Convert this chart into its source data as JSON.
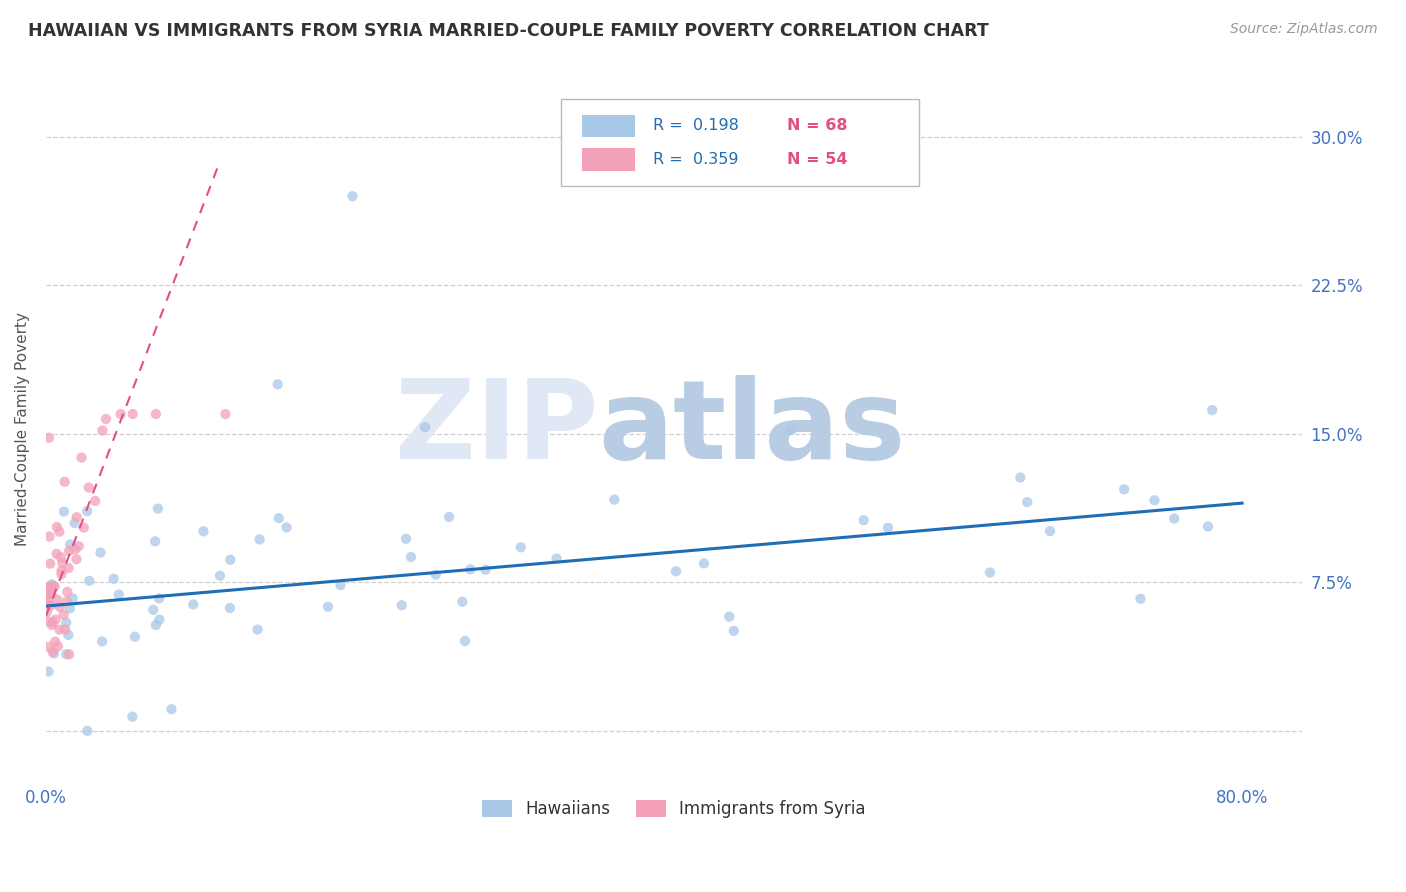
{
  "title": "HAWAIIAN VS IMMIGRANTS FROM SYRIA MARRIED-COUPLE FAMILY POVERTY CORRELATION CHART",
  "source": "Source: ZipAtlas.com",
  "ylabel": "Married-Couple Family Poverty",
  "ytick_labels": [
    "",
    "7.5%",
    "15.0%",
    "22.5%",
    "30.0%"
  ],
  "ytick_vals": [
    0.0,
    0.075,
    0.15,
    0.225,
    0.3
  ],
  "xtick_labels": [
    "0.0%",
    "80.0%"
  ],
  "xtick_vals": [
    0.0,
    0.8
  ],
  "xlim": [
    0.0,
    0.84
  ],
  "ylim": [
    -0.025,
    0.33
  ],
  "hawaiian_color": "#a8c8e8",
  "syria_color": "#f4a0b8",
  "trendline_hawaiian_color": "#1e6db5",
  "trendline_syria_color": "#e05080",
  "tick_label_color": "#4472c4",
  "hawaiian_trend_x": [
    0.0,
    0.8
  ],
  "hawaiian_trend_y": [
    0.063,
    0.115
  ],
  "syria_trend_x": [
    0.0,
    0.115
  ],
  "syria_trend_y": [
    0.058,
    0.285
  ],
  "background_color": "#ffffff",
  "grid_color": "#d0d0d0",
  "legend_r1_color": "#1e6db5",
  "legend_r2_color": "#1e6db5",
  "legend_n_color": "#e05080",
  "watermark_zip_color": "#e0e8f5",
  "watermark_atlas_color": "#b8cce4"
}
